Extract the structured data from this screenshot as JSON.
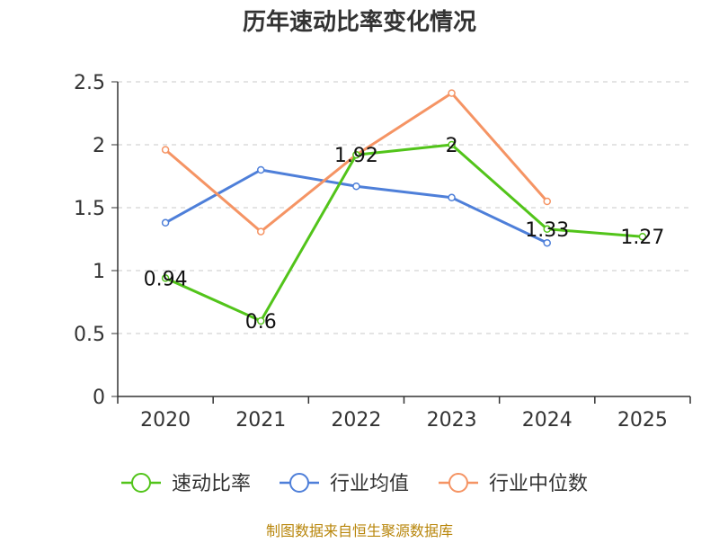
{
  "chart_data": {
    "type": "line",
    "title": "历年速动比率变化情况",
    "categories": [
      "2020",
      "2021",
      "2022",
      "2023",
      "2024",
      "2025"
    ],
    "ylim": [
      0,
      2.5
    ],
    "yticks": [
      "0",
      "0.5",
      "1",
      "1.5",
      "2",
      "2.5"
    ],
    "grid": true,
    "legend_position": "bottom",
    "series": [
      {
        "name": "速动比率",
        "color": "#52c41a",
        "values": [
          0.94,
          0.6,
          1.92,
          2,
          1.33,
          1.27
        ],
        "labels": [
          "0.94",
          "0.6",
          "1.92",
          "2",
          "1.33",
          "1.27"
        ]
      },
      {
        "name": "行业均值",
        "color": "#4e7fd9",
        "values": [
          1.38,
          1.8,
          1.67,
          1.58,
          1.22,
          null
        ]
      },
      {
        "name": "行业中位数",
        "color": "#f59464",
        "values": [
          1.96,
          1.31,
          1.92,
          2.41,
          1.55,
          null
        ]
      }
    ]
  },
  "footer": {
    "source": "制图数据来自恒生聚源数据库",
    "color": "#b8860b"
  }
}
